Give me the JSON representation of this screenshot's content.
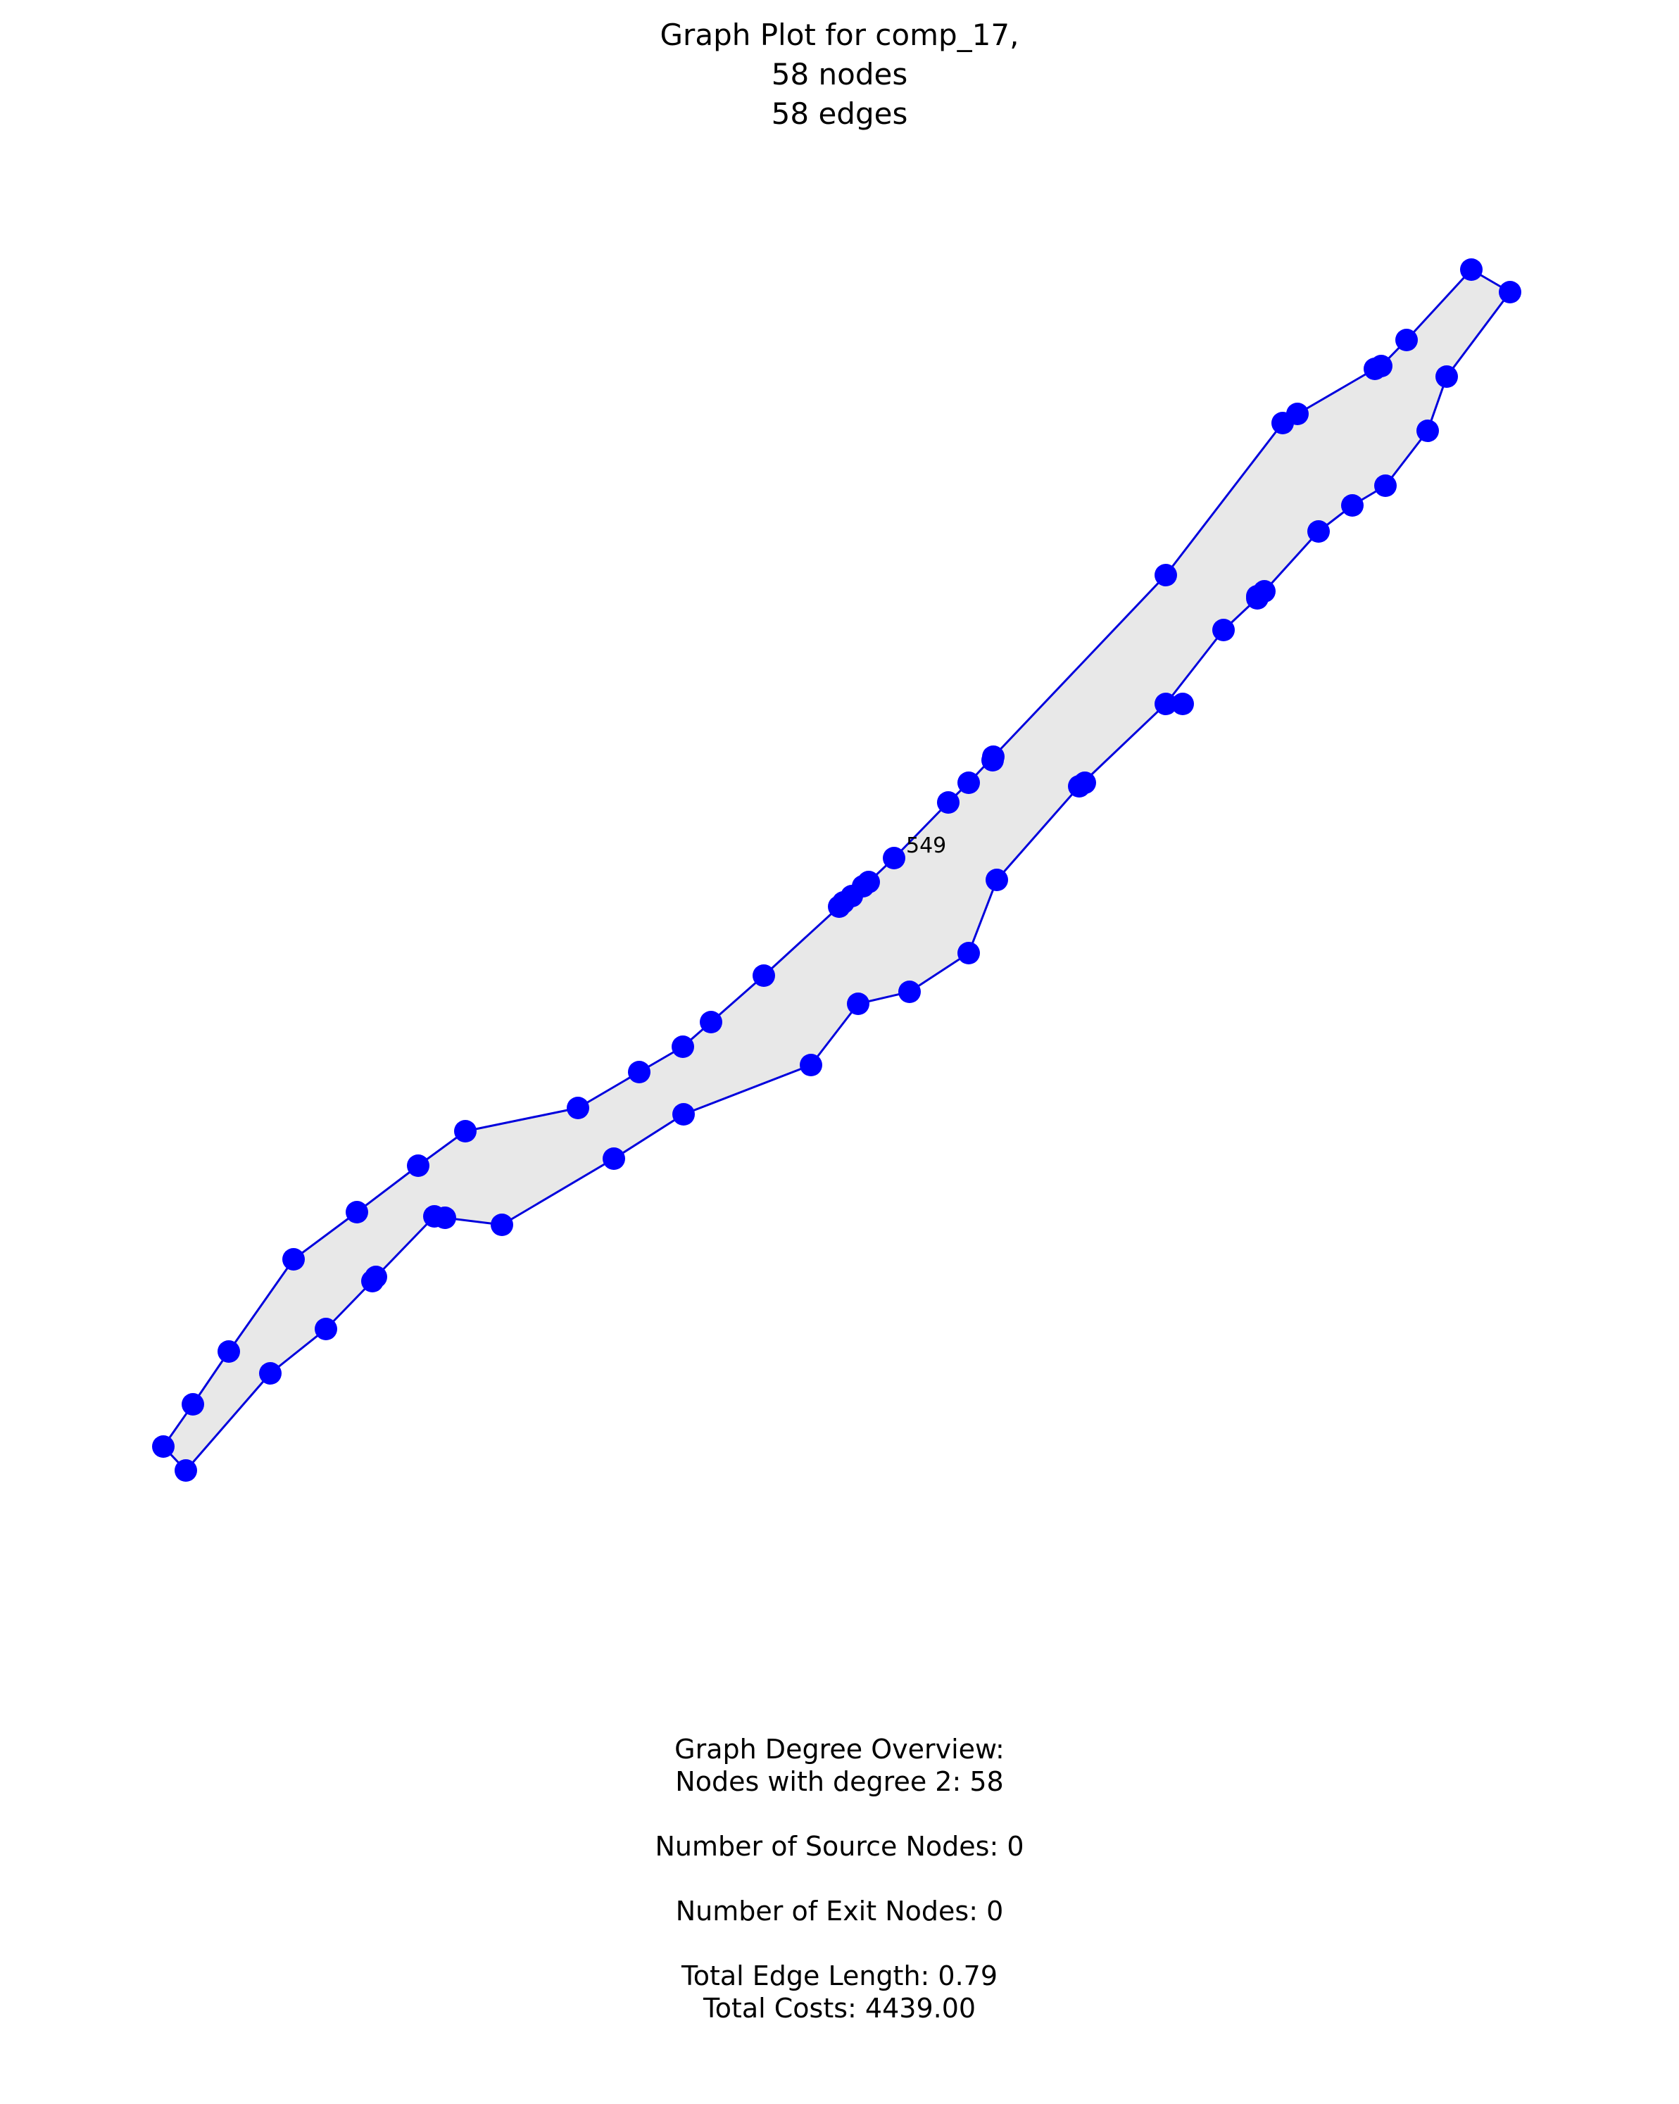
{
  "title": {
    "line1": "Graph Plot for comp_17,",
    "line2": "58 nodes",
    "line3": "58 edges"
  },
  "graph": {
    "node_label": "549",
    "node_count": 58,
    "edge_count": 58,
    "fill_color": "#e8e8e8",
    "edge_color": "#0000dd",
    "node_color": "#0000ff"
  },
  "summary": {
    "heading": "Graph Degree Overview:",
    "degree_line": "Nodes with degree 2: 58",
    "source_nodes": "Number of Source Nodes: 0",
    "exit_nodes": "Number of Exit Nodes: 0",
    "edge_length": "Total Edge Length: 0.79",
    "total_costs": "Total Costs: 4439.00"
  }
}
